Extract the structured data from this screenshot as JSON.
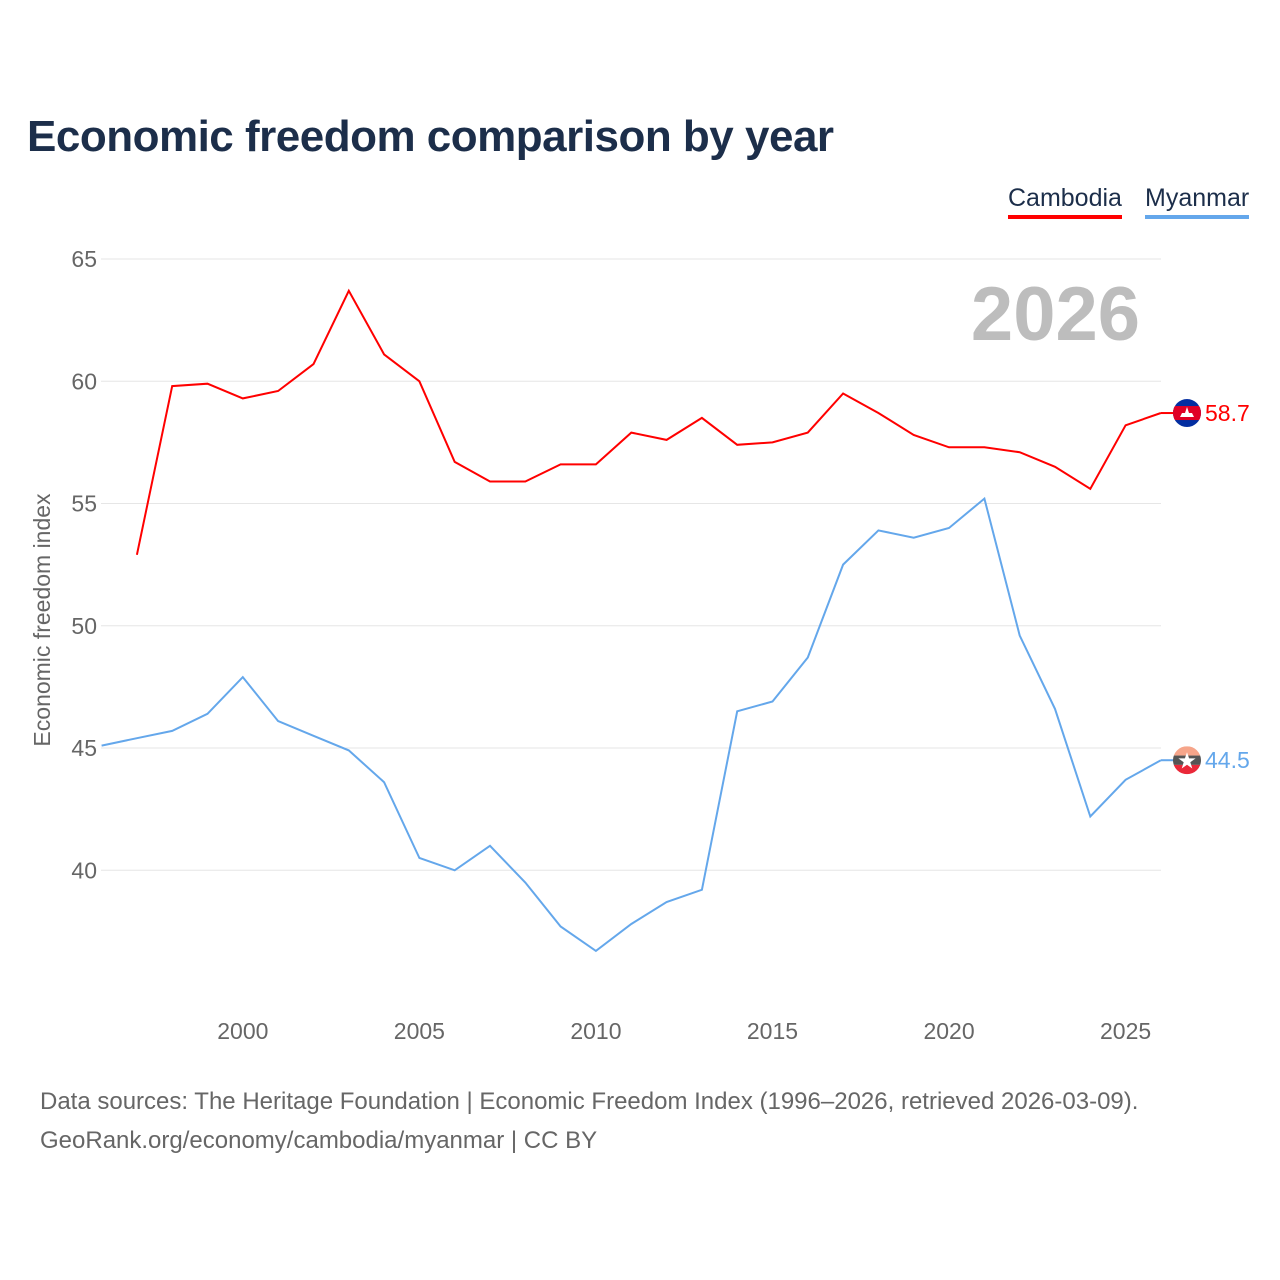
{
  "title": "Economic freedom comparison by year",
  "footer": {
    "line1": "Data sources: The Heritage Foundation | Economic Freedom Index (1996–2026, retrieved 2026-03-09).",
    "line2": "GeoRank.org/economy/cambodia/myanmar | CC BY"
  },
  "chart_data": {
    "type": "line",
    "title": "Economic freedom comparison by year",
    "xlabel": "",
    "ylabel": "Economic freedom index",
    "watermark_year": "2026",
    "xlim": [
      1996,
      2026
    ],
    "ylim": [
      35.2,
      65
    ],
    "grid": true,
    "legend_position": "top-right",
    "x_ticks": [
      "2000",
      "2005",
      "2010",
      "2015",
      "2020",
      "2025"
    ],
    "y_ticks": [
      "40",
      "45",
      "50",
      "55",
      "60",
      "65"
    ],
    "series": [
      {
        "name": "Cambodia",
        "color": "#ff0000",
        "end_label": "58.7",
        "flag": "cambodia-flag",
        "x": [
          1997,
          1998,
          1999,
          2000,
          2001,
          2002,
          2003,
          2004,
          2005,
          2006,
          2007,
          2008,
          2009,
          2010,
          2011,
          2012,
          2013,
          2014,
          2015,
          2016,
          2017,
          2018,
          2019,
          2020,
          2021,
          2022,
          2023,
          2024,
          2025,
          2026
        ],
        "values": [
          52.9,
          59.8,
          59.9,
          59.3,
          59.6,
          60.7,
          63.7,
          61.1,
          60.0,
          56.7,
          55.9,
          55.9,
          56.6,
          56.6,
          57.9,
          57.6,
          58.5,
          57.4,
          57.5,
          57.9,
          59.5,
          58.7,
          57.8,
          57.3,
          57.3,
          57.1,
          56.5,
          55.6,
          58.2,
          58.7
        ]
      },
      {
        "name": "Myanmar",
        "color": "#64a7eb",
        "end_label": "44.5",
        "flag": "myanmar-flag",
        "x": [
          1996,
          1997,
          1998,
          1999,
          2000,
          2001,
          2002,
          2003,
          2004,
          2005,
          2006,
          2007,
          2008,
          2009,
          2010,
          2011,
          2012,
          2013,
          2014,
          2015,
          2016,
          2017,
          2018,
          2019,
          2020,
          2021,
          2022,
          2023,
          2024,
          2025,
          2026
        ],
        "values": [
          45.1,
          45.4,
          45.7,
          46.4,
          47.9,
          46.1,
          45.5,
          44.9,
          43.6,
          40.5,
          40.0,
          41.0,
          39.5,
          37.7,
          36.7,
          37.8,
          38.7,
          39.2,
          46.5,
          46.9,
          48.7,
          52.5,
          53.9,
          53.6,
          54.0,
          55.2,
          49.6,
          46.6,
          42.2,
          43.7,
          44.5
        ]
      }
    ]
  }
}
